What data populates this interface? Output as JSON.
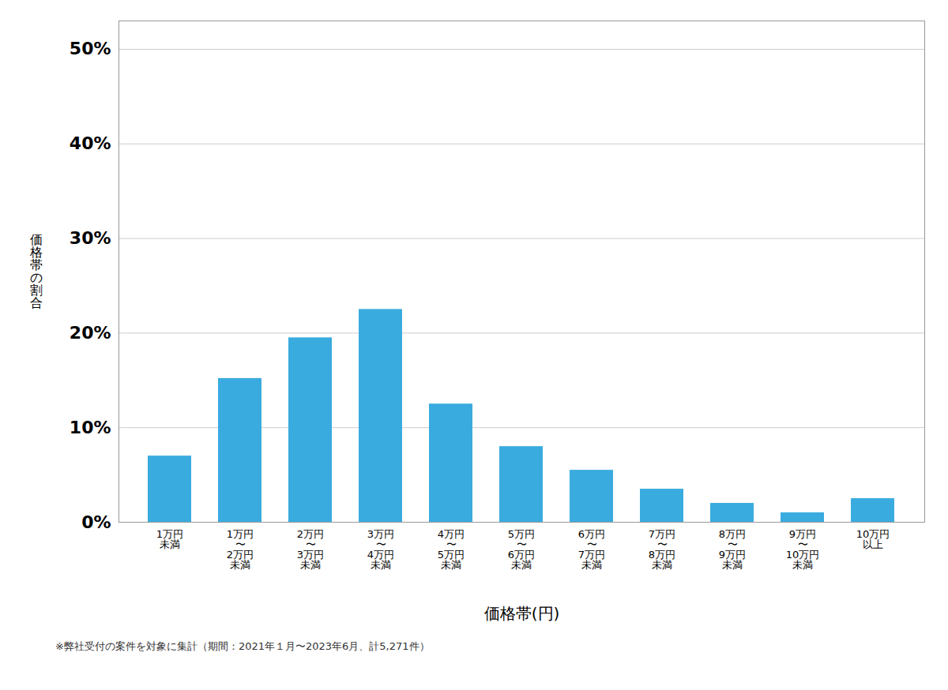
{
  "chart_data": {
    "type": "bar",
    "categories": [
      "1万円\n未満",
      "1万円\n〜\n2万円\n未満",
      "2万円\n〜\n3万円\n未満",
      "3万円\n〜\n4万円\n未満",
      "4万円\n〜\n5万円\n未満",
      "5万円\n〜\n6万円\n未満",
      "6万円\n〜\n7万円\n未満",
      "7万円\n〜\n8万円\n未満",
      "8万円\n〜\n9万円\n未満",
      "9万円\n〜\n10万円\n未満",
      "10万円\n以上"
    ],
    "values": [
      7.0,
      15.2,
      19.5,
      22.5,
      12.5,
      8.0,
      5.5,
      3.5,
      2.0,
      1.0,
      2.5
    ],
    "color": "#3aabdf",
    "xlabel": "価格帯(円)",
    "ylabel": "価格帯の割合",
    "caption": "※弊社受付の案件を対象に集計（期間：2021年１月〜2023年6月、計5,271件）",
    "ylim": [
      0,
      53
    ],
    "yticks": [
      {
        "value": 0,
        "label": "0%"
      },
      {
        "value": 10,
        "label": "10%"
      },
      {
        "value": 20,
        "label": "20%"
      },
      {
        "value": 30,
        "label": "30%"
      },
      {
        "value": 40,
        "label": "40%"
      },
      {
        "value": 50,
        "label": "50%"
      }
    ],
    "grid": true
  }
}
